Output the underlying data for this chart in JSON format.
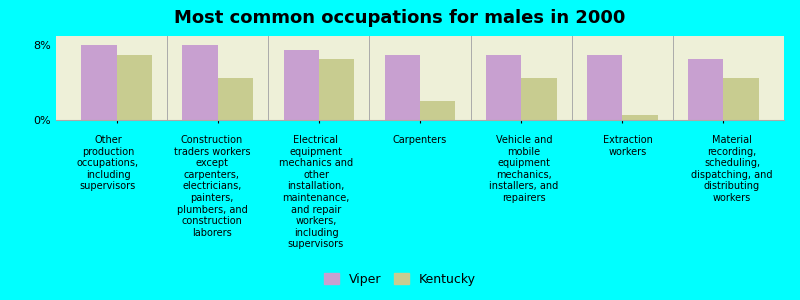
{
  "title": "Most common occupations for males in 2000",
  "background_color": "#00FFFF",
  "plot_bg_color": "#eef0d8",
  "categories": [
    "Other\nproduction\noccupations,\nincluding\nsupervisors",
    "Construction\ntraders workers\nexcept\ncarpenters,\nelectricians,\npainters,\nplumbers, and\nconstruction\nlaborers",
    "Electrical\nequipment\nmechanics and\nother\ninstallation,\nmaintenance,\nand repair\nworkers,\nincluding\nsupervisors",
    "Carpenters",
    "Vehicle and\nmobile\nequipment\nmechanics,\ninstallers, and\nrepairers",
    "Extraction\nworkers",
    "Material\nrecording,\nscheduling,\ndispatching, and\ndistributing\nworkers"
  ],
  "viper_values": [
    8.0,
    8.0,
    7.5,
    7.0,
    7.0,
    7.0,
    6.5
  ],
  "kentucky_values": [
    7.0,
    4.5,
    6.5,
    2.0,
    4.5,
    0.5,
    4.5
  ],
  "viper_color": "#c8a0d0",
  "kentucky_color": "#c8cc90",
  "ytick_labels": [
    "0%",
    "8%"
  ],
  "legend_labels": [
    "Viper",
    "Kentucky"
  ],
  "bar_width": 0.35,
  "title_fontsize": 13,
  "label_fontsize": 7.0
}
